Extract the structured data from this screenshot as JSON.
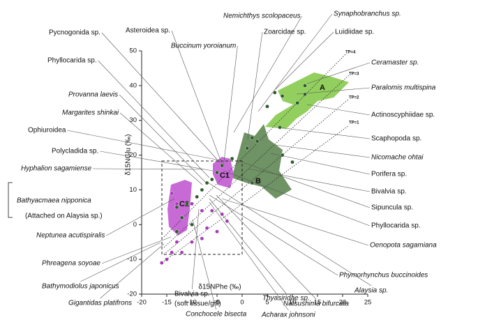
{
  "chart_data": {
    "type": "scatter",
    "xlabel": "δ15NPhe (‰)",
    "ylabel": "δ15NGlu (‰)",
    "xlim": [
      -20,
      25
    ],
    "ylim": [
      -20,
      50
    ],
    "xticks": [
      -20,
      -15,
      -10,
      -5,
      0,
      5,
      10,
      15,
      20,
      25
    ],
    "yticks": [
      -20,
      -10,
      0,
      10,
      20,
      30,
      40,
      50
    ],
    "series": [
      {
        "color": "#2f5a2c",
        "x": [
          6.5,
          12.5,
          8,
          12.5,
          11,
          5,
          7.5,
          2,
          1,
          3,
          8,
          10,
          2,
          -2,
          -4,
          -5,
          -6,
          -7,
          -8,
          -9,
          -11,
          -13,
          -10,
          -12,
          -13
        ],
        "values": [
          38,
          40,
          37,
          37.5,
          35,
          34,
          28,
          25,
          22,
          24,
          20,
          18,
          12,
          19,
          17,
          15,
          13,
          12,
          10,
          8,
          6,
          5,
          0,
          2,
          -2
        ]
      },
      {
        "color": "#a23cb3",
        "x": [
          -14,
          -13,
          -10,
          -8,
          -6,
          -4,
          -3,
          -5,
          -7,
          -8,
          -10,
          -12,
          -13,
          -14,
          -15,
          -16
        ],
        "values": [
          9,
          6,
          6,
          4,
          4,
          3,
          1,
          -2,
          -1,
          -4,
          -5,
          -8,
          -5,
          -8,
          -10,
          -11
        ]
      }
    ],
    "region_labels": [
      "A",
      "B",
      "C1",
      "C2"
    ],
    "tp_labels": [
      "TP=1",
      "TP=2",
      "TP=3",
      "TP=4"
    ],
    "annotations": [
      "Pycnogonida sp.",
      "Asteroidea sp.",
      "Buccinum yoroianum",
      "Nemichthys scolopaceus",
      "Synaphobranchus sp.",
      "Zoarcidae sp.",
      "Luidiidae sp.",
      "Phyllocarida sp.",
      "Ceramaster sp.",
      "Paralomis multispina",
      "Provanna laevis",
      "Actinoscyphiidae sp.",
      "Margarites shinkai",
      "Ophiuroidea",
      "Scaphopoda sp.",
      "Polycladida sp.",
      "Nicomache ohtai",
      "Hyphalion sagamiense",
      "Porifera sp.",
      "Bathyacmaea nipponica",
      "Bivalvia sp.",
      "(Attached on Alaysia sp.)",
      "Sipuncula sp.",
      "Phyllocarida sp.",
      "Neptunea acutispiralis",
      "Oenopota sagamiana",
      "Phreagena soyoae",
      "Phymorhynchus buccinoides",
      "Bathymodiolus japonicus",
      "Alaysia sp.",
      "Gigantidas platifrons",
      "Bivalvia sp.",
      "(soft tissue/gill)",
      "Thyasiridae sp.",
      "Natsushima bifurcata",
      "Conchocele bisecta",
      "Acharax johnsoni"
    ]
  }
}
